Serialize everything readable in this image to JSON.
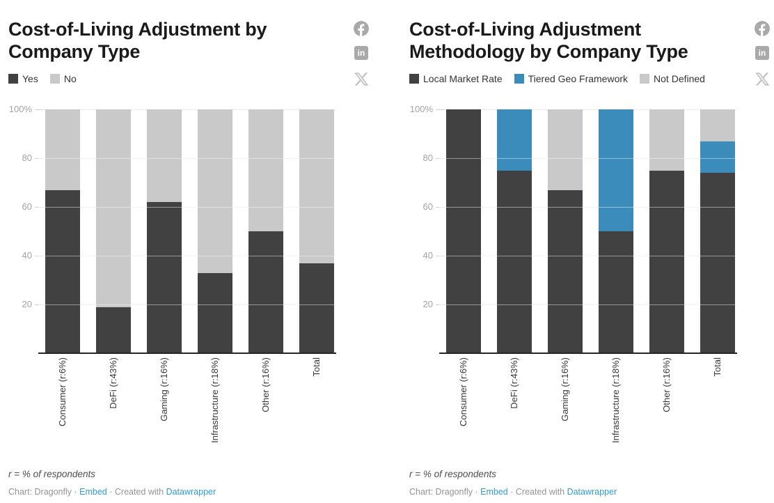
{
  "colors": {
    "dark": "#414141",
    "blue": "#3b8cba",
    "lightgray": "#c9c9c9",
    "link_blue": "#2e9bd6",
    "axis_label": "#a3a3a3",
    "baseline": "#262626"
  },
  "social_icons": [
    "facebook-share",
    "linkedin-share",
    "x-share"
  ],
  "chart_data": [
    {
      "type": "bar",
      "stacked": true,
      "title": "Cost-of-Living Adjustment by Company Type",
      "categories": [
        "Consumer (r:6%)",
        "DeFi (r:43%)",
        "Gaming (r:16%)",
        "Infrastructure (r:18%)",
        "Other (r:16%)",
        "Total"
      ],
      "series": [
        {
          "name": "Yes",
          "color": "#414141",
          "values": [
            67,
            19,
            62,
            33,
            50,
            37
          ]
        },
        {
          "name": "No",
          "color": "#c9c9c9",
          "values": [
            33,
            81,
            38,
            67,
            50,
            63
          ]
        }
      ],
      "xlabel": "",
      "ylabel": "",
      "ylim": [
        0,
        100
      ],
      "yticks": [
        {
          "v": 100,
          "label": "100%"
        },
        {
          "v": 80,
          "label": "80"
        },
        {
          "v": 60,
          "label": "60"
        },
        {
          "v": 40,
          "label": "40"
        },
        {
          "v": 20,
          "label": "20"
        }
      ],
      "grid": true,
      "legend_position": "top"
    },
    {
      "type": "bar",
      "stacked": true,
      "title": "Cost-of-Living Adjustment Methodology by Company Type",
      "categories": [
        "Consumer (r:6%)",
        "DeFi (r:43%)",
        "Gaming (r:16%)",
        "Infrastructure (r:18%)",
        "Other (r:16%)",
        "Total"
      ],
      "series": [
        {
          "name": "Local Market Rate",
          "color": "#414141",
          "values": [
            100,
            75,
            67,
            50,
            75,
            74
          ]
        },
        {
          "name": "Tiered Geo Framework",
          "color": "#3b8cba",
          "values": [
            0,
            25,
            0,
            50,
            0,
            13
          ]
        },
        {
          "name": "Not Defined",
          "color": "#c9c9c9",
          "values": [
            0,
            0,
            33,
            0,
            25,
            13
          ]
        }
      ],
      "xlabel": "",
      "ylabel": "",
      "ylim": [
        0,
        100
      ],
      "yticks": [
        {
          "v": 100,
          "label": "100%"
        },
        {
          "v": 80,
          "label": "80"
        },
        {
          "v": 60,
          "label": "60"
        },
        {
          "v": 40,
          "label": "40"
        },
        {
          "v": 20,
          "label": "20"
        }
      ],
      "grid": true,
      "legend_position": "top"
    }
  ],
  "panels": [
    {
      "footnote": "r = % of respondents"
    },
    {
      "footnote": "r = % of respondents"
    }
  ],
  "byline": {
    "prefix": "Chart: Dragonfly",
    "separator": "·",
    "embed_link": "Embed",
    "created_with": "Created with",
    "brand_link": "Datawrapper"
  }
}
